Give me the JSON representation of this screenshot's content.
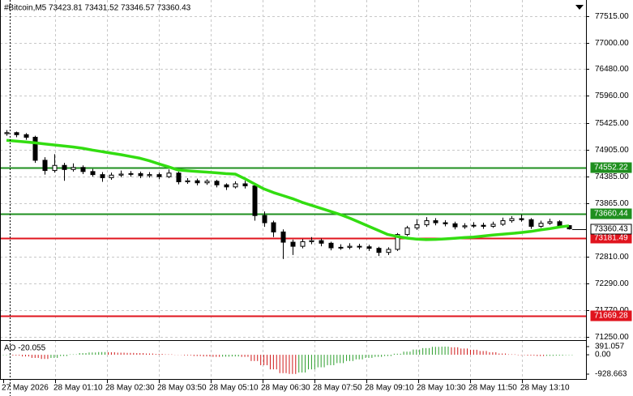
{
  "chart_data": {
    "type": "candlestick",
    "title": "#Bitcoin,M5  73423.81 73431.52 73346.57 73360.43",
    "ylim": [
      71187,
      77831
    ],
    "yticks": [
      {
        "value": 77515,
        "label": "77515.00"
      },
      {
        "value": 77000,
        "label": "77000.00"
      },
      {
        "value": 76480,
        "label": "76480.00"
      },
      {
        "value": 75960,
        "label": "75960.00"
      },
      {
        "value": 75425,
        "label": "75425.00"
      },
      {
        "value": 74905,
        "label": "74905.00"
      },
      {
        "value": 74385,
        "label": "74385.00"
      },
      {
        "value": 73865,
        "label": "73865.00"
      },
      {
        "value": 72810,
        "label": "72810.00"
      },
      {
        "value": 72290,
        "label": "72290.00"
      },
      {
        "value": 71770,
        "label": "71770.00"
      },
      {
        "value": 71250,
        "label": "71250.00"
      }
    ],
    "grid": true,
    "x_labels": [
      "27 May 2026",
      "28 May 01:10",
      "28 May 02:30",
      "28 May 03:50",
      "28 May 05:10",
      "28 May 06:30",
      "28 May 07:50",
      "28 May 09:10",
      "28 May 10:30",
      "28 May 11:50",
      "28 May 13:10"
    ],
    "ohlc": [
      [
        75220,
        75290,
        75180,
        75240
      ],
      [
        75240,
        75260,
        75150,
        75200
      ],
      [
        75200,
        75230,
        75100,
        75150
      ],
      [
        75150,
        75180,
        74650,
        74700
      ],
      [
        74700,
        74760,
        74420,
        74500
      ],
      [
        74500,
        74820,
        74460,
        74600
      ],
      [
        74600,
        74650,
        74300,
        74520
      ],
      [
        74520,
        74640,
        74480,
        74560
      ],
      [
        74560,
        74600,
        74430,
        74480
      ],
      [
        74480,
        74530,
        74380,
        74420
      ],
      [
        74420,
        74470,
        74280,
        74360
      ],
      [
        74360,
        74460,
        74320,
        74410
      ],
      [
        74410,
        74500,
        74370,
        74430
      ],
      [
        74430,
        74490,
        74380,
        74440
      ],
      [
        74440,
        74480,
        74350,
        74400
      ],
      [
        74400,
        74470,
        74360,
        74420
      ],
      [
        74420,
        74460,
        74330,
        74380
      ],
      [
        74380,
        74520,
        74350,
        74450
      ],
      [
        74450,
        74480,
        74230,
        74280
      ],
      [
        74280,
        74350,
        74240,
        74300
      ],
      [
        74300,
        74340,
        74210,
        74260
      ],
      [
        74260,
        74330,
        74220,
        74290
      ],
      [
        74290,
        74320,
        74170,
        74220
      ],
      [
        74220,
        74250,
        74120,
        74180
      ],
      [
        74180,
        74290,
        74150,
        74240
      ],
      [
        74240,
        74300,
        74150,
        74200
      ],
      [
        74200,
        74230,
        73520,
        73620
      ],
      [
        73620,
        73700,
        73400,
        73480
      ],
      [
        73480,
        73520,
        73200,
        73300
      ],
      [
        73300,
        73350,
        72770,
        73100
      ],
      [
        73100,
        73150,
        72850,
        73020
      ],
      [
        73020,
        73160,
        72980,
        73110
      ],
      [
        73110,
        73200,
        73060,
        73130
      ],
      [
        73130,
        73170,
        73020,
        73080
      ],
      [
        73080,
        73110,
        72940,
        72990
      ],
      [
        72990,
        73060,
        72950,
        73000
      ],
      [
        73000,
        73080,
        72960,
        73020
      ],
      [
        73020,
        73070,
        72960,
        73010
      ],
      [
        73010,
        73050,
        72930,
        72980
      ],
      [
        72980,
        73010,
        72830,
        72900
      ],
      [
        72900,
        73000,
        72850,
        72960
      ],
      [
        72960,
        73280,
        72930,
        73250
      ],
      [
        73250,
        73420,
        73220,
        73380
      ],
      [
        73380,
        73550,
        73340,
        73440
      ],
      [
        73440,
        73590,
        73400,
        73520
      ],
      [
        73520,
        73570,
        73430,
        73480
      ],
      [
        73480,
        73530,
        73410,
        73460
      ],
      [
        73460,
        73500,
        73350,
        73400
      ],
      [
        73400,
        73470,
        73360,
        73420
      ],
      [
        73420,
        73490,
        73380,
        73430
      ],
      [
        73430,
        73480,
        73360,
        73410
      ],
      [
        73410,
        73500,
        73380,
        73450
      ],
      [
        73450,
        73580,
        73420,
        73520
      ],
      [
        73520,
        73610,
        73480,
        73560
      ],
      [
        73560,
        73640,
        73500,
        73540
      ],
      [
        73540,
        73570,
        73360,
        73410
      ],
      [
        73410,
        73520,
        73380,
        73470
      ],
      [
        73470,
        73560,
        73440,
        73500
      ],
      [
        73500,
        73530,
        73390,
        73420
      ],
      [
        73423.81,
        73431.52,
        73346.57,
        73360.43
      ]
    ],
    "ma": {
      "color": "#33dd11",
      "values": [
        75090,
        75075,
        75060,
        75040,
        75020,
        75000,
        74980,
        74960,
        74935,
        74900,
        74870,
        74840,
        74810,
        74775,
        74740,
        74690,
        74630,
        74570,
        74510,
        74495,
        74480,
        74470,
        74455,
        74440,
        74430,
        74340,
        74240,
        74140,
        74070,
        74010,
        73950,
        73880,
        73820,
        73760,
        73700,
        73640,
        73570,
        73490,
        73410,
        73330,
        73250,
        73210,
        73180,
        73160,
        73150,
        73155,
        73165,
        73175,
        73190,
        73200,
        73220,
        73240,
        73255,
        73270,
        73290,
        73310,
        73340,
        73365,
        73395,
        73420
      ]
    },
    "levels": [
      {
        "value": 74552.22,
        "color": "#1f8f1f"
      },
      {
        "value": 73660.44,
        "color": "#1f8f1f"
      },
      {
        "value": 73181.49,
        "color": "#e0141e"
      },
      {
        "value": 71669.28,
        "color": "#e0141e"
      }
    ],
    "last_price": 73360.43,
    "ao": {
      "label": "AO -20.055",
      "ylim": [
        -1161,
        663
      ],
      "yticks": [
        391.057,
        {
          "value": 0,
          "label": "0.00"
        },
        -928.663
      ],
      "up_color": "#2a9d2a",
      "down_color": "#d01818",
      "values": [
        -20,
        -40,
        -80,
        -150,
        -200,
        -150,
        -60,
        20,
        80,
        110,
        130,
        120,
        100,
        90,
        80,
        60,
        40,
        20,
        -10,
        -30,
        -60,
        -80,
        -100,
        -90,
        -80,
        -100,
        -300,
        -500,
        -700,
        -880,
        -920,
        -850,
        -700,
        -600,
        -500,
        -400,
        -300,
        -220,
        -150,
        -100,
        -60,
        50,
        150,
        250,
        320,
        380,
        391,
        360,
        300,
        240,
        180,
        120,
        60,
        20,
        -20,
        -40,
        -60,
        -50,
        -40,
        -20.055
      ]
    }
  }
}
